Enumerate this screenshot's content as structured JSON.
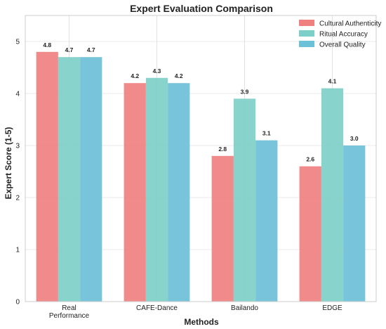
{
  "chart_data": {
    "type": "bar",
    "title": "Expert Evaluation Comparison",
    "xlabel": "Methods",
    "ylabel": "Expert Score (1-5)",
    "ylim": [
      0,
      5.5
    ],
    "yticks": [
      0,
      1,
      2,
      3,
      4,
      5
    ],
    "categories": [
      [
        "Real",
        "Performance"
      ],
      [
        "CAFE-Dance"
      ],
      [
        "Bailando"
      ],
      [
        "EDGE"
      ]
    ],
    "series": [
      {
        "name": "Cultural Authenticity",
        "color": "#f08080",
        "values": [
          4.8,
          4.2,
          2.8,
          2.6
        ],
        "labels": [
          "4.8",
          "4.2",
          "2.8",
          "2.6"
        ]
      },
      {
        "name": "Ritual Accuracy",
        "color": "#7ecfc7",
        "values": [
          4.7,
          4.3,
          3.9,
          4.1
        ],
        "labels": [
          "4.7",
          "4.3",
          "3.9",
          "4.1"
        ]
      },
      {
        "name": "Overall Quality",
        "color": "#6cc0d8",
        "values": [
          4.7,
          4.2,
          3.1,
          3.0
        ],
        "labels": [
          "4.7",
          "4.2",
          "3.1",
          "3.0"
        ]
      }
    ],
    "grid": true,
    "legend": "top-right"
  }
}
